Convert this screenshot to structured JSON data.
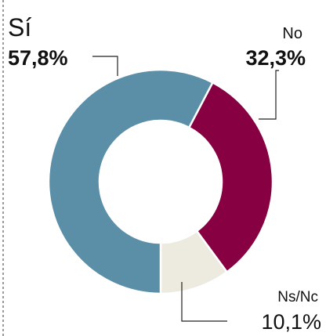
{
  "chart_data": {
    "type": "pie",
    "categories": [
      "Sí",
      "No",
      "Ns/Nc"
    ],
    "values": [
      57.8,
      32.3,
      10.1
    ],
    "value_labels": [
      "57,8%",
      "32,3%",
      "10,1%"
    ],
    "colors": [
      "#5b8fa8",
      "#870041",
      "#edebdf"
    ]
  }
}
